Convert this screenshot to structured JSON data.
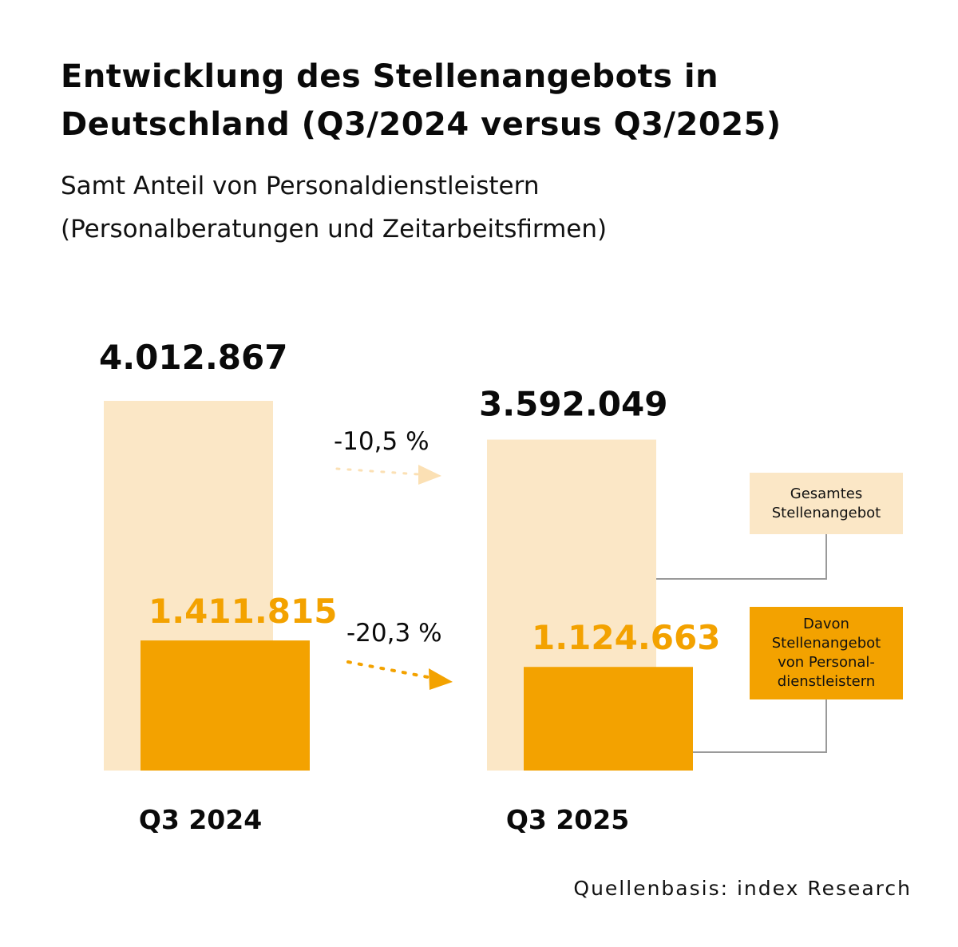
{
  "header": {
    "title": "Entwicklung des Stellenangebots in Deutschland (Q3/2024 versus Q3/2025)",
    "subtitle_line1": "Samt Anteil von Personaldienstleistern",
    "subtitle_line2": "(Personalberatungen und Zeitarbeitsfirmen)"
  },
  "colors": {
    "total": "#fbe7c6",
    "staffing": "#f3a200",
    "text": "#0a0a0a",
    "connector": "#9a9a9a",
    "arrow_light": "#fbe0b4"
  },
  "chart_data": {
    "type": "bar",
    "title": "Entwicklung des Stellenangebots in Deutschland (Q3/2024 versus Q3/2025)",
    "subtitle": "Samt Anteil von Personaldienstleistern (Personalberatungen und Zeitarbeitsfirmen)",
    "xlabel": "",
    "ylabel": "",
    "grid": false,
    "categories": [
      "Q3 2024",
      "Q3 2025"
    ],
    "series": [
      {
        "name": "Gesamtes Stellenangebot",
        "values": [
          4012867,
          3592049
        ],
        "labels": [
          "4.012.867",
          "3.592.049"
        ]
      },
      {
        "name": "Davon Stellenangebot von Personaldienstleistern",
        "values": [
          1411815,
          1124663
        ],
        "labels": [
          "1.411.815",
          "1.124.663"
        ]
      }
    ],
    "annotations": [
      {
        "series": "Gesamtes Stellenangebot",
        "text": "-10,5 %"
      },
      {
        "series": "Davon Stellenangebot von Personaldienstleistern",
        "text": "-20,3 %"
      }
    ],
    "legend": [
      {
        "label_line1": "Gesamtes",
        "label_line2": "Stellenangebot"
      },
      {
        "label_line1": "Davon",
        "label_line2": "Stellenangebot",
        "label_line3": "von Personal-",
        "label_line4": "dienstleistern"
      }
    ],
    "legend_placement": "right",
    "ylim": [
      0,
      4012867
    ]
  },
  "footer": {
    "source": "Quellenbasis: index Research"
  }
}
